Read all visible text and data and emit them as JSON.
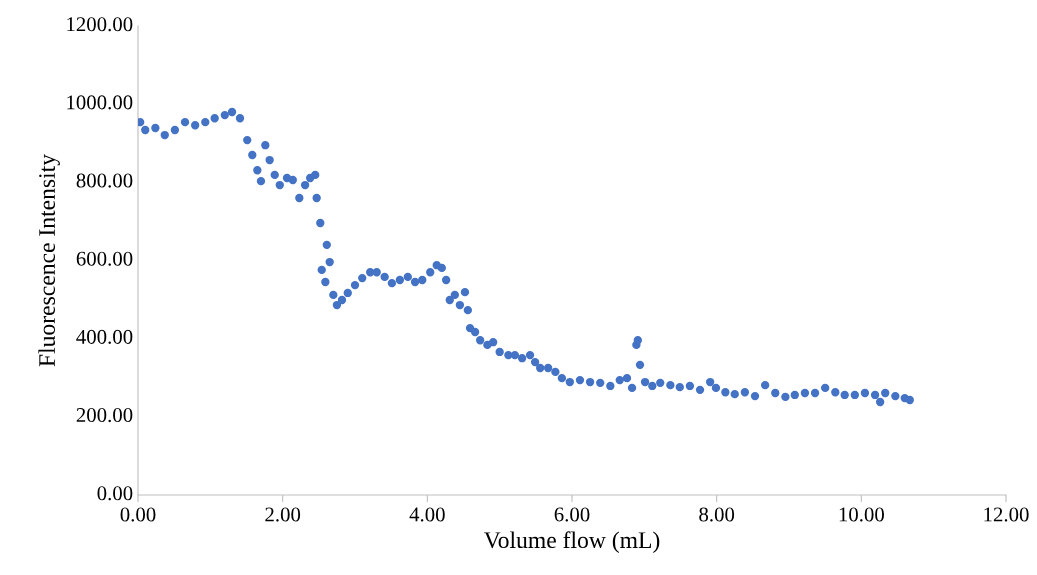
{
  "chart_data": {
    "type": "scatter",
    "xlabel": "Volume flow (mL)",
    "ylabel": "Fluorescence Intensity",
    "xlim": [
      0,
      12
    ],
    "ylim": [
      0,
      1200
    ],
    "xticks": [
      {
        "value": 0,
        "label": "0.00"
      },
      {
        "value": 2,
        "label": "2.00"
      },
      {
        "value": 4,
        "label": "4.00"
      },
      {
        "value": 6,
        "label": "6.00"
      },
      {
        "value": 8,
        "label": "8.00"
      },
      {
        "value": 10,
        "label": "10.00"
      },
      {
        "value": 12,
        "label": "12.00"
      }
    ],
    "yticks": [
      {
        "value": 0,
        "label": "0.00"
      },
      {
        "value": 200,
        "label": "200.00"
      },
      {
        "value": 400,
        "label": "400.00"
      },
      {
        "value": 600,
        "label": "600.00"
      },
      {
        "value": 800,
        "label": "800.00"
      },
      {
        "value": 1000,
        "label": "1000.00"
      },
      {
        "value": 1200,
        "label": "1200.00"
      }
    ],
    "grid": false,
    "legend": false,
    "marker": "circle",
    "series": [
      {
        "color": "#4472c4",
        "x": [
          0.03,
          0.1,
          0.24,
          0.37,
          0.51,
          0.65,
          0.79,
          0.93,
          1.06,
          1.2,
          1.3,
          1.41,
          1.51,
          1.58,
          1.65,
          1.7,
          1.76,
          1.82,
          1.89,
          1.96,
          2.06,
          2.14,
          2.23,
          2.31,
          2.38,
          2.45,
          2.47,
          2.52,
          2.54,
          2.59,
          2.61,
          2.65,
          2.7,
          2.75,
          2.82,
          2.9,
          3.0,
          3.1,
          3.21,
          3.3,
          3.41,
          3.51,
          3.62,
          3.73,
          3.83,
          3.93,
          4.04,
          4.13,
          4.2,
          4.26,
          4.31,
          4.38,
          4.45,
          4.52,
          4.56,
          4.59,
          4.66,
          4.73,
          4.83,
          4.91,
          5.0,
          5.12,
          5.21,
          5.31,
          5.42,
          5.49,
          5.56,
          5.67,
          5.77,
          5.86,
          5.97,
          6.11,
          6.25,
          6.39,
          6.53,
          6.66,
          6.76,
          6.83,
          6.89,
          6.91,
          6.94,
          7.01,
          7.11,
          7.22,
          7.36,
          7.49,
          7.63,
          7.77,
          7.91,
          7.99,
          8.12,
          8.25,
          8.39,
          8.53,
          8.67,
          8.81,
          8.95,
          9.08,
          9.22,
          9.36,
          9.5,
          9.64,
          9.77,
          9.91,
          10.05,
          10.19,
          10.26,
          10.33,
          10.47,
          10.6,
          10.67
        ],
        "values": [
          954,
          934,
          939,
          921,
          934,
          954,
          946,
          954,
          964,
          972,
          980,
          964,
          908,
          870,
          831,
          803,
          895,
          857,
          819,
          793,
          811,
          806,
          760,
          793,
          811,
          819,
          760,
          696,
          576,
          545,
          640,
          596,
          512,
          486,
          499,
          517,
          537,
          555,
          570,
          570,
          558,
          542,
          550,
          558,
          545,
          550,
          570,
          588,
          581,
          550,
          499,
          512,
          486,
          519,
          473,
          427,
          417,
          396,
          384,
          391,
          366,
          358,
          358,
          350,
          358,
          340,
          325,
          325,
          315,
          299,
          289,
          294,
          289,
          287,
          279,
          294,
          299,
          274,
          384,
          396,
          333,
          289,
          279,
          287,
          281,
          276,
          279,
          269,
          289,
          274,
          263,
          258,
          263,
          253,
          281,
          261,
          251,
          256,
          261,
          261,
          274,
          263,
          256,
          256,
          261,
          256,
          238,
          261,
          253,
          248,
          243
        ]
      }
    ]
  }
}
